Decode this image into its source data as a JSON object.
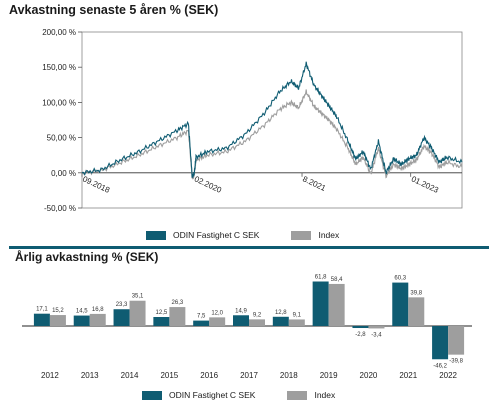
{
  "colors": {
    "odin": "#0f5c72",
    "index": "#9e9e9e",
    "divider": "#0f5c72",
    "axis": "#444444"
  },
  "chart_data": [
    {
      "type": "line",
      "title": "Avkastning senaste 5 åren % (SEK)",
      "yticks": [
        "200,00 %",
        "150,00 %",
        "100,00 %",
        "50,00 %",
        "0,00 %",
        "-50,00 %"
      ],
      "ytick_values": [
        200,
        150,
        100,
        50,
        0,
        -50
      ],
      "ylim": [
        -50,
        200
      ],
      "xticks": [
        "09.2018",
        "02.2020",
        "8.2021",
        "01.2023"
      ],
      "xtick_positions": [
        0.0,
        0.294,
        0.579,
        0.865
      ],
      "series": [
        {
          "name": "ODIN Fastighet C SEK",
          "x": [
            0.0,
            0.05,
            0.1,
            0.15,
            0.2,
            0.25,
            0.28,
            0.29,
            0.295,
            0.3,
            0.33,
            0.38,
            0.43,
            0.48,
            0.52,
            0.55,
            0.57,
            0.59,
            0.61,
            0.63,
            0.65,
            0.67,
            0.7,
            0.72,
            0.74,
            0.76,
            0.78,
            0.8,
            0.82,
            0.84,
            0.86,
            0.88,
            0.9,
            0.92,
            0.94,
            0.96,
            1.0
          ],
          "y": [
            0,
            4,
            18,
            30,
            45,
            60,
            70,
            -5,
            -2,
            22,
            30,
            35,
            55,
            85,
            115,
            130,
            120,
            155,
            125,
            110,
            95,
            80,
            45,
            20,
            30,
            5,
            45,
            0,
            20,
            12,
            20,
            25,
            50,
            35,
            15,
            22,
            15
          ]
        },
        {
          "name": "Index",
          "x": [
            0.0,
            0.05,
            0.1,
            0.15,
            0.2,
            0.25,
            0.28,
            0.29,
            0.295,
            0.3,
            0.33,
            0.38,
            0.43,
            0.48,
            0.52,
            0.55,
            0.57,
            0.59,
            0.61,
            0.63,
            0.65,
            0.67,
            0.7,
            0.72,
            0.74,
            0.76,
            0.78,
            0.8,
            0.82,
            0.84,
            0.86,
            0.88,
            0.9,
            0.92,
            0.94,
            0.96,
            1.0
          ],
          "y": [
            0,
            3,
            14,
            25,
            38,
            50,
            60,
            -8,
            -4,
            18,
            25,
            30,
            45,
            68,
            90,
            100,
            92,
            115,
            95,
            85,
            75,
            62,
            35,
            12,
            22,
            -2,
            35,
            -5,
            12,
            6,
            12,
            18,
            38,
            28,
            8,
            15,
            8
          ]
        }
      ]
    },
    {
      "type": "bar",
      "title": "Årlig avkastning % (SEK)",
      "categories": [
        "2012",
        "2013",
        "2014",
        "2015",
        "2016",
        "2017",
        "2018",
        "2019",
        "2020",
        "2021",
        "2022"
      ],
      "series": [
        {
          "name": "ODIN Fastighet C SEK",
          "values": [
            17.1,
            14.5,
            23.3,
            12.5,
            7.5,
            14.9,
            12.8,
            61.8,
            -2.8,
            60.3,
            -46.2
          ],
          "labels": [
            "17,1",
            "14,5",
            "23,3",
            "12,5",
            "7,5",
            "14,9",
            "12,8",
            "61,8",
            "-2,8",
            "60,3",
            "-46,2"
          ]
        },
        {
          "name": "Index",
          "values": [
            15.2,
            16.8,
            35.1,
            26.3,
            12.0,
            9.2,
            9.1,
            58.4,
            -3.4,
            39.8,
            -39.8
          ],
          "labels": [
            "15,2",
            "16,8",
            "35,1",
            "26,3",
            "12,0",
            "9,2",
            "9,1",
            "58,4",
            "-3,4",
            "39,8",
            "-39,8"
          ]
        }
      ],
      "ylim": [
        -50,
        70
      ]
    }
  ],
  "legend_top": {
    "odin": "ODIN Fastighet C SEK",
    "index": "Index"
  },
  "legend_bottom": {
    "odin": "ODIN Fastighet C SEK",
    "index": "Index"
  }
}
